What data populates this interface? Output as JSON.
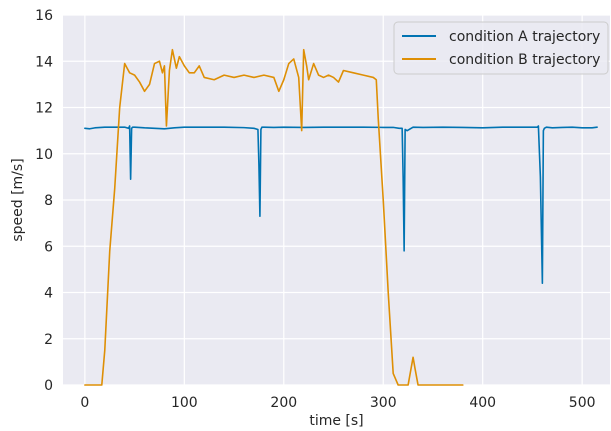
{
  "chart_data": {
    "type": "line",
    "title": "",
    "xlabel": "time [s]",
    "ylabel": "speed [m/s]",
    "xlim": [
      -22,
      528
    ],
    "ylim": [
      0,
      16
    ],
    "xticks": [
      0,
      100,
      200,
      300,
      400,
      500
    ],
    "yticks": [
      0,
      2,
      4,
      6,
      8,
      10,
      12,
      14,
      16
    ],
    "grid": true,
    "legend_position": "top-right",
    "background_color": "#eaeaf2",
    "grid_color": "#ffffff",
    "series": [
      {
        "name": "condition A trajectory",
        "color": "#0173b2",
        "x": [
          0,
          5,
          10,
          20,
          30,
          40,
          44,
          45,
          46,
          47,
          48,
          50,
          60,
          70,
          80,
          90,
          100,
          120,
          140,
          160,
          170,
          174,
          175,
          176,
          177,
          178,
          180,
          190,
          200,
          220,
          240,
          260,
          280,
          300,
          310,
          316,
          319,
          320,
          321,
          322,
          324,
          330,
          340,
          360,
          380,
          400,
          420,
          440,
          455,
          456,
          458,
          460,
          461,
          462,
          464,
          470,
          480,
          490,
          500,
          510,
          515
        ],
        "y": [
          11.1,
          11.08,
          11.12,
          11.15,
          11.15,
          11.15,
          11.1,
          11.2,
          8.9,
          11.1,
          11.15,
          11.15,
          11.12,
          11.1,
          11.08,
          11.12,
          11.15,
          11.15,
          11.15,
          11.13,
          11.1,
          11.05,
          9.5,
          7.3,
          11.05,
          11.15,
          11.15,
          11.14,
          11.15,
          11.14,
          11.15,
          11.15,
          11.15,
          11.14,
          11.14,
          11.1,
          11.1,
          9.0,
          5.8,
          11.05,
          11.0,
          11.15,
          11.14,
          11.15,
          11.14,
          11.12,
          11.15,
          11.15,
          11.15,
          11.2,
          9.0,
          4.4,
          11.0,
          11.1,
          11.15,
          11.12,
          11.14,
          11.15,
          11.12,
          11.12,
          11.15
        ]
      },
      {
        "name": "condition B trajectory",
        "color": "#de8f05",
        "x": [
          0,
          10,
          17,
          20,
          25,
          30,
          35,
          40,
          45,
          50,
          55,
          60,
          65,
          70,
          75,
          78,
          80,
          82,
          85,
          88,
          92,
          95,
          100,
          105,
          110,
          115,
          120,
          130,
          140,
          150,
          160,
          170,
          180,
          190,
          195,
          200,
          205,
          210,
          215,
          218,
          220,
          223,
          225,
          230,
          235,
          240,
          245,
          250,
          255,
          260,
          270,
          280,
          290,
          293,
          295,
          300,
          305,
          310,
          315,
          320,
          325,
          330,
          332,
          335,
          340,
          350,
          360,
          380
        ],
        "y": [
          0,
          0,
          0,
          1.5,
          5.8,
          8.5,
          12,
          13.9,
          13.5,
          13.4,
          13.1,
          12.7,
          13.0,
          13.9,
          14.0,
          13.5,
          13.8,
          11.2,
          13.6,
          14.5,
          13.7,
          14.2,
          13.8,
          13.5,
          13.5,
          13.8,
          13.3,
          13.2,
          13.4,
          13.3,
          13.4,
          13.3,
          13.4,
          13.3,
          12.7,
          13.2,
          13.9,
          14.1,
          13.3,
          11.0,
          14.5,
          13.8,
          13.2,
          13.9,
          13.4,
          13.3,
          13.4,
          13.3,
          13.1,
          13.6,
          13.5,
          13.4,
          13.3,
          13.2,
          11.5,
          8.0,
          4.0,
          0.5,
          0,
          0,
          0,
          1.2,
          0.7,
          0,
          0,
          0,
          0,
          0
        ]
      }
    ]
  }
}
